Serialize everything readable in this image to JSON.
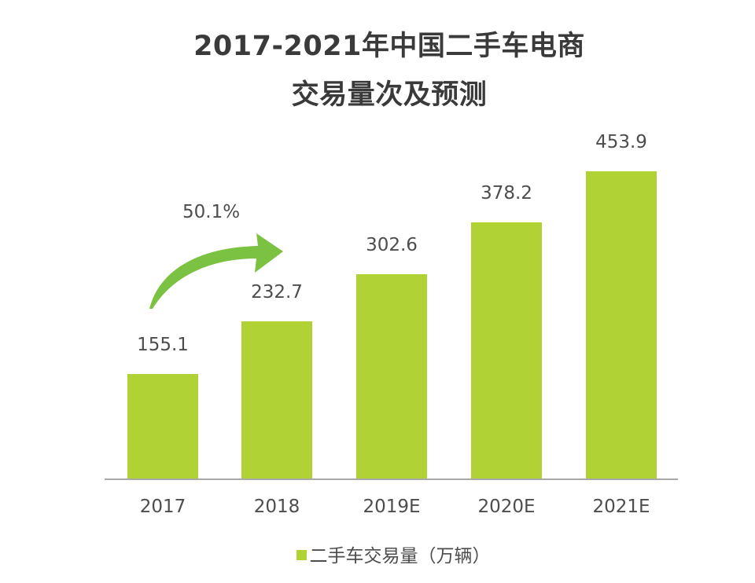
{
  "title": {
    "line1": "2017-2021年中国二手车电商",
    "line2": "交易量次及预测"
  },
  "growth_annotation": {
    "label": "50.1%",
    "icon": "curved-arrow-right",
    "color": "#7cc242"
  },
  "legend": {
    "label": "二手车交易量（万辆）",
    "color": "#b0d235"
  },
  "colors": {
    "bar": "#b0d235",
    "axis": "#a8a8a8",
    "text": "#4d4d4d",
    "title": "#3a3a3a"
  },
  "bars": [
    {
      "category": "2017",
      "value": "155.1"
    },
    {
      "category": "2018",
      "value": "232.7"
    },
    {
      "category": "2019E",
      "value": "302.6"
    },
    {
      "category": "2020E",
      "value": "378.2"
    },
    {
      "category": "2021E",
      "value": "453.9"
    }
  ],
  "chart_data": {
    "type": "bar",
    "title": "2017-2021年中国二手车电商交易量次及预测",
    "categories": [
      "2017",
      "2018",
      "2019E",
      "2020E",
      "2021E"
    ],
    "series": [
      {
        "name": "二手车交易量（万辆）",
        "values": [
          155.1,
          232.7,
          302.6,
          378.2,
          453.9
        ],
        "color": "#b0d235"
      }
    ],
    "annotations": [
      {
        "text": "50.1%",
        "type": "curved-arrow",
        "from": "2017",
        "to": "2018"
      }
    ],
    "xlabel": "",
    "ylabel": "",
    "ylim": [
      0,
      460
    ],
    "grid": false,
    "y_axis_visible": false,
    "data_labels": true,
    "legend_position": "bottom"
  }
}
